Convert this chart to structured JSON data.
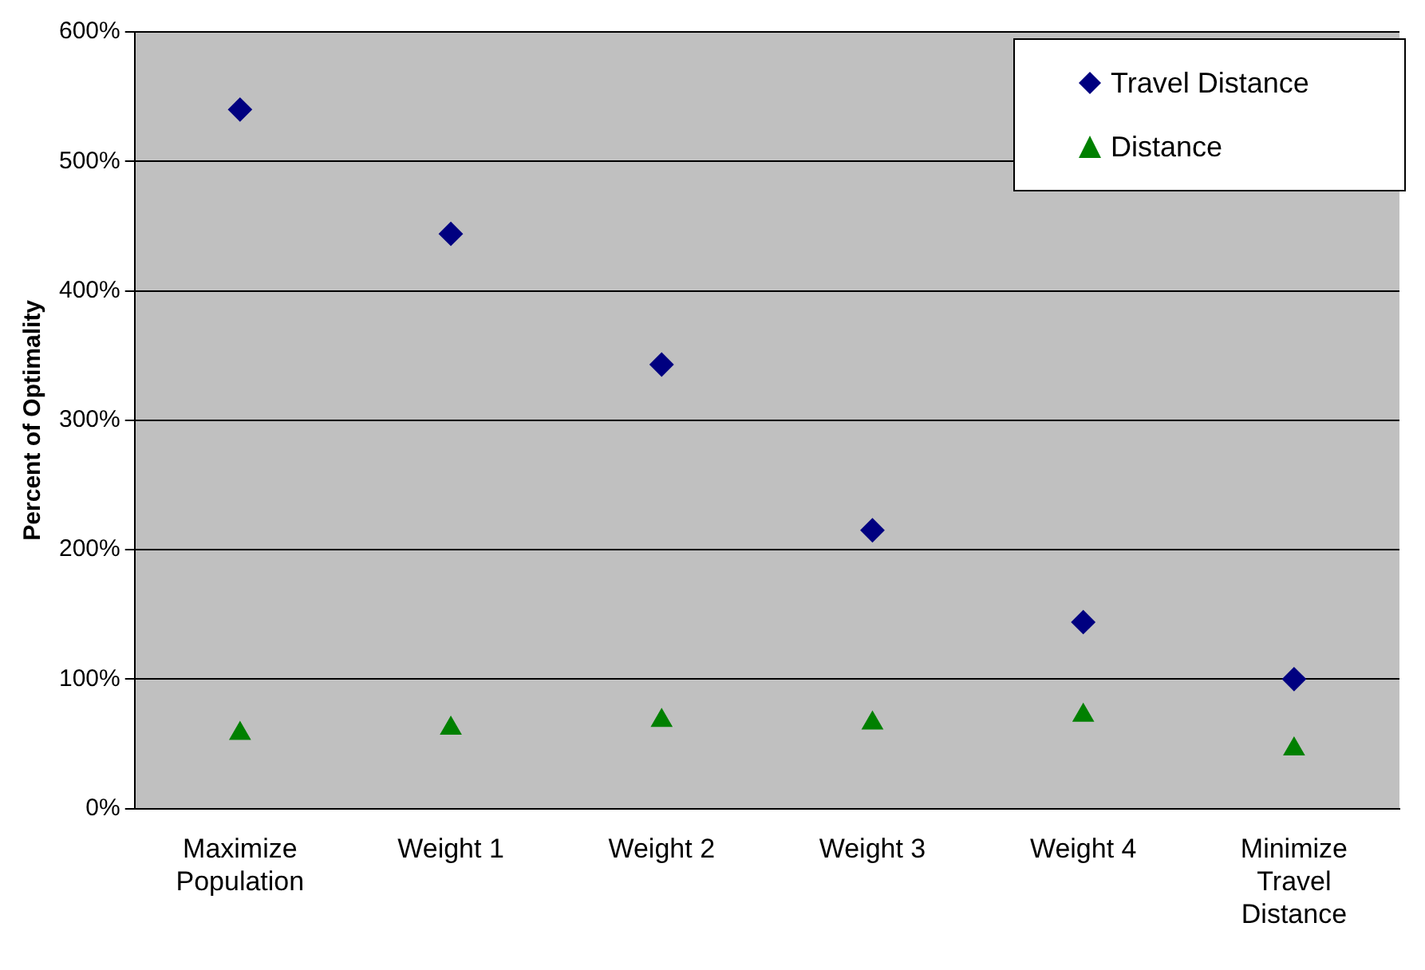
{
  "chart_data": {
    "type": "scatter",
    "ylabel": "Percent of Optimality",
    "categories": [
      "Maximize Population",
      "Weight 1",
      "Weight 2",
      "Weight 3",
      "Weight 4",
      "Minimize Travel Distance"
    ],
    "series": [
      {
        "name": "Travel Distance",
        "color": "#000080",
        "marker": "diamond",
        "values": [
          540,
          444,
          343,
          215,
          144,
          100
        ]
      },
      {
        "name": "Distance",
        "color": "#008000",
        "marker": "triangle",
        "values": [
          58,
          62,
          68,
          66,
          72,
          46
        ]
      }
    ],
    "ylim": [
      0,
      600
    ],
    "yticks": [
      {
        "value": 0,
        "label": "0%"
      },
      {
        "value": 100,
        "label": "100%"
      },
      {
        "value": 200,
        "label": "200%"
      },
      {
        "value": 300,
        "label": "300%"
      },
      {
        "value": 400,
        "label": "400%"
      },
      {
        "value": 500,
        "label": "500%"
      },
      {
        "value": 600,
        "label": "600%"
      }
    ],
    "grid": "y",
    "legend": "top right"
  }
}
